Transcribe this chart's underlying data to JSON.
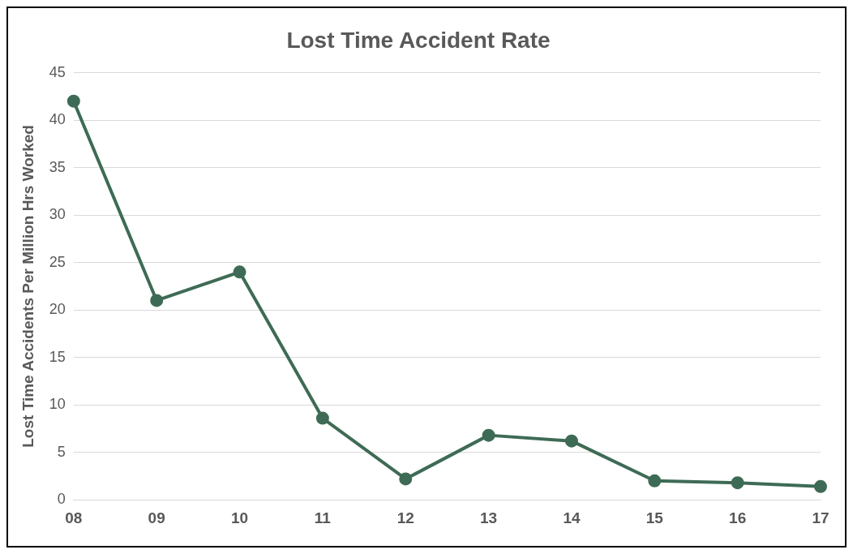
{
  "chart_data": {
    "type": "line",
    "title": "Lost Time Accident Rate",
    "ylabel": "Lost Time Accidents Per Million Hrs Worked",
    "categories": [
      "08",
      "09",
      "10",
      "11",
      "12",
      "13",
      "14",
      "15",
      "16",
      "17"
    ],
    "series": [
      {
        "color": "#3e6b55",
        "values": [
          42,
          21,
          24,
          8.6,
          2.2,
          6.8,
          6.2,
          2.0,
          1.8,
          1.4
        ]
      }
    ],
    "ylim": [
      0,
      45
    ],
    "yticks": [
      0,
      5,
      10,
      15,
      20,
      25,
      30,
      35,
      40,
      45
    ],
    "grid": "y",
    "legend": false,
    "marker": "circle",
    "line_style": "solid"
  }
}
